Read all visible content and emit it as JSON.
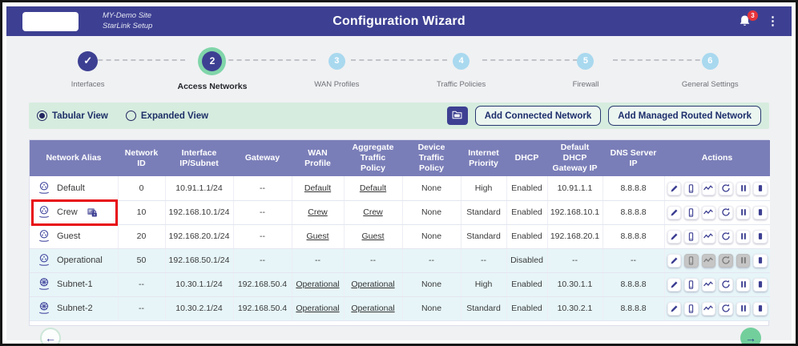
{
  "header": {
    "site_line1": "MY-Demo Site",
    "site_line2": "StarLink Setup",
    "title": "Configuration Wizard",
    "notification_count": "3"
  },
  "stepper": {
    "steps": [
      {
        "label": "Interfaces",
        "number": "✓",
        "state": "complete"
      },
      {
        "label": "Access Networks",
        "number": "2",
        "state": "active"
      },
      {
        "label": "WAN Profiles",
        "number": "3",
        "state": "upcoming"
      },
      {
        "label": "Traffic Policies",
        "number": "4",
        "state": "upcoming"
      },
      {
        "label": "Firewall",
        "number": "5",
        "state": "upcoming"
      },
      {
        "label": "General Settings",
        "number": "6",
        "state": "upcoming"
      }
    ]
  },
  "toolbar": {
    "view_options": [
      {
        "label": "Tabular View",
        "selected": true
      },
      {
        "label": "Expanded View",
        "selected": false
      }
    ],
    "expand_icon": "folder-icon",
    "add_connected_label": "Add Connected Network",
    "add_managed_label": "Add Managed Routed Network"
  },
  "table": {
    "columns": [
      "Network Alias",
      "Network ID",
      "Interface IP/Subnet",
      "Gateway",
      "WAN Profile",
      "Aggregate Traffic Policy",
      "Device Traffic Policy",
      "Internet Priority",
      "DHCP",
      "Default DHCP Gateway IP",
      "DNS Server IP",
      "Actions"
    ],
    "rows": [
      {
        "alias": "Default",
        "icon": "connected-network",
        "locked": false,
        "highlighted": false,
        "tint": "white",
        "network_id": "0",
        "interface_ip": "10.91.1.1/24",
        "gateway": "--",
        "wan_profile": "Default",
        "aggregate_policy": "Default",
        "device_policy": "None",
        "internet_priority": "High",
        "dhcp": "Enabled",
        "default_dhcp_gateway": "10.91.1.1",
        "dns_server": "8.8.8.8",
        "actions": [
          {
            "icon": "edit",
            "enabled": true
          },
          {
            "icon": "device",
            "enabled": true
          },
          {
            "icon": "monitor",
            "enabled": true
          },
          {
            "icon": "reconnect",
            "enabled": true
          },
          {
            "icon": "pause",
            "enabled": true
          },
          {
            "icon": "stop",
            "enabled": true
          }
        ]
      },
      {
        "alias": "Crew",
        "icon": "connected-network",
        "locked": true,
        "highlighted": true,
        "tint": "white",
        "network_id": "10",
        "interface_ip": "192.168.10.1/24",
        "gateway": "--",
        "wan_profile": "Crew",
        "aggregate_policy": "Crew",
        "device_policy": "None",
        "internet_priority": "Standard",
        "dhcp": "Enabled",
        "default_dhcp_gateway": "192.168.10.1",
        "dns_server": "8.8.8.8",
        "actions": [
          {
            "icon": "edit",
            "enabled": true
          },
          {
            "icon": "device",
            "enabled": true
          },
          {
            "icon": "monitor",
            "enabled": true
          },
          {
            "icon": "reconnect",
            "enabled": true
          },
          {
            "icon": "pause",
            "enabled": true
          },
          {
            "icon": "stop",
            "enabled": true
          }
        ]
      },
      {
        "alias": "Guest",
        "icon": "connected-network",
        "locked": false,
        "highlighted": false,
        "tint": "white",
        "network_id": "20",
        "interface_ip": "192.168.20.1/24",
        "gateway": "--",
        "wan_profile": "Guest",
        "aggregate_policy": "Guest",
        "device_policy": "None",
        "internet_priority": "Standard",
        "dhcp": "Enabled",
        "default_dhcp_gateway": "192.168.20.1",
        "dns_server": "8.8.8.8",
        "actions": [
          {
            "icon": "edit",
            "enabled": true
          },
          {
            "icon": "device",
            "enabled": true
          },
          {
            "icon": "monitor",
            "enabled": true
          },
          {
            "icon": "reconnect",
            "enabled": true
          },
          {
            "icon": "pause",
            "enabled": true
          },
          {
            "icon": "stop",
            "enabled": true
          }
        ]
      },
      {
        "alias": "Operational",
        "icon": "connected-network",
        "locked": false,
        "highlighted": false,
        "tint": "cyan",
        "network_id": "50",
        "interface_ip": "192.168.50.1/24",
        "gateway": "--",
        "wan_profile": "--",
        "aggregate_policy": "--",
        "device_policy": "--",
        "internet_priority": "--",
        "dhcp": "Disabled",
        "default_dhcp_gateway": "--",
        "dns_server": "--",
        "actions": [
          {
            "icon": "edit",
            "enabled": true
          },
          {
            "icon": "device",
            "enabled": false
          },
          {
            "icon": "monitor",
            "enabled": false
          },
          {
            "icon": "reconnect",
            "enabled": false
          },
          {
            "icon": "pause",
            "enabled": false
          },
          {
            "icon": "stop",
            "enabled": true
          }
        ]
      },
      {
        "alias": "Subnet-1",
        "icon": "routed-network",
        "locked": false,
        "highlighted": false,
        "tint": "cyan",
        "network_id": "--",
        "interface_ip": "10.30.1.1/24",
        "gateway": "192.168.50.4",
        "wan_profile": "Operational",
        "aggregate_policy": "Operational",
        "device_policy": "None",
        "internet_priority": "High",
        "dhcp": "Enabled",
        "default_dhcp_gateway": "10.30.1.1",
        "dns_server": "8.8.8.8",
        "actions": [
          {
            "icon": "edit",
            "enabled": true
          },
          {
            "icon": "device",
            "enabled": true
          },
          {
            "icon": "monitor",
            "enabled": true
          },
          {
            "icon": "reconnect",
            "enabled": true
          },
          {
            "icon": "pause",
            "enabled": true
          },
          {
            "icon": "stop",
            "enabled": true
          }
        ]
      },
      {
        "alias": "Subnet-2",
        "icon": "routed-network",
        "locked": false,
        "highlighted": false,
        "tint": "cyan",
        "network_id": "--",
        "interface_ip": "10.30.2.1/24",
        "gateway": "192.168.50.4",
        "wan_profile": "Operational",
        "aggregate_policy": "Operational",
        "device_policy": "None",
        "internet_priority": "Standard",
        "dhcp": "Enabled",
        "default_dhcp_gateway": "10.30.2.1",
        "dns_server": "8.8.8.8",
        "actions": [
          {
            "icon": "edit",
            "enabled": true
          },
          {
            "icon": "device",
            "enabled": true
          },
          {
            "icon": "monitor",
            "enabled": true
          },
          {
            "icon": "reconnect",
            "enabled": true
          },
          {
            "icon": "pause",
            "enabled": true
          },
          {
            "icon": "stop",
            "enabled": true
          }
        ]
      }
    ]
  },
  "footer": {
    "prev_icon": "left-arrow-icon",
    "next_icon": "right-arrow-icon"
  },
  "colors": {
    "header_bg": "#3d4092",
    "table_header_bg": "#7a7eb8",
    "toolbar_bg": "#d6ecdf",
    "alt_row_bg": "#e7f5f8",
    "step_ring_green": "#80d5a9",
    "step_upcoming_blue": "#a9d9ef",
    "next_button_green": "#72cf9c",
    "badge_red": "#e6333a",
    "highlight_red": "#e80d13",
    "action_icon_indigo": "#3c3e92"
  }
}
